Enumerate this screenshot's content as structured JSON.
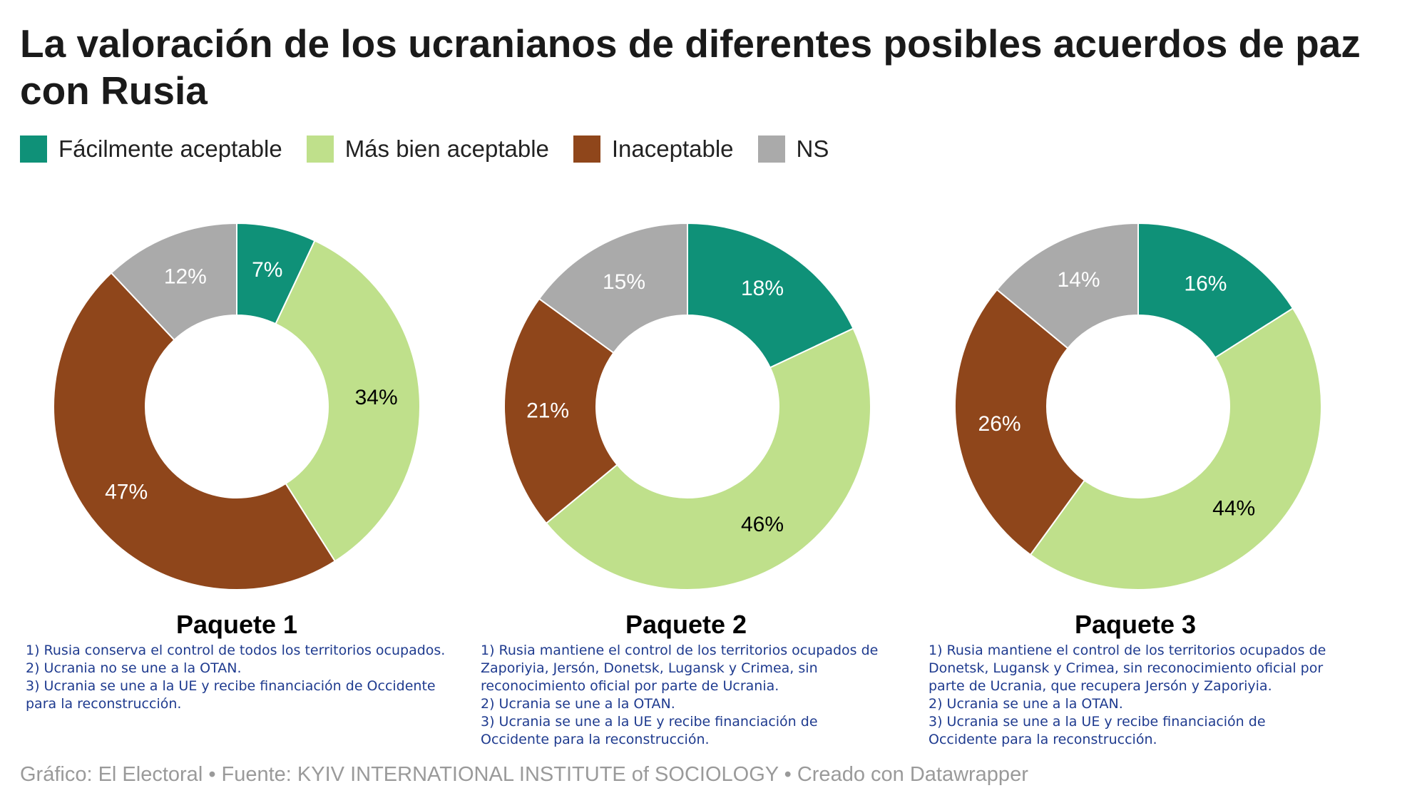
{
  "title": "La valoración de los ucranianos de diferentes posibles acuerdos de paz con Rusia",
  "legend": [
    {
      "label": "Fácilmente aceptable",
      "color": "#0f9178"
    },
    {
      "label": "Más bien aceptable",
      "color": "#bfe08b"
    },
    {
      "label": "Inaceptable",
      "color": "#8f461b"
    },
    {
      "label": "NS",
      "color": "#aaaaaa"
    }
  ],
  "panels": [
    {
      "title": "Paquete 1",
      "description": [
        "1) Rusia conserva el control de todos los territorios ocupados.",
        "2) Ucrania no se une a la OTAN.",
        "3) Ucrania se une a la UE y recibe financiación de Occidente",
        "para la reconstrucción."
      ]
    },
    {
      "title": "Paquete 2",
      "description": [
        "1) Rusia mantiene el control de los territorios ocupados de",
        "Zaporiyia, Jersón, Donetsk, Lugansk y Crimea, sin",
        "reconocimiento oficial por parte de Ucrania.",
        "2) Ucrania se une a la OTAN.",
        "3) Ucrania se une a la UE y recibe financiación de",
        "Occidente para la reconstrucción."
      ]
    },
    {
      "title": "Paquete 3",
      "description": [
        "1) Rusia mantiene el control de los territorios ocupados de",
        "Donetsk, Lugansk y Crimea, sin reconocimiento oficial por",
        "parte de Ucrania, que recupera Jersón y Zaporiyia.",
        "2) Ucrania se une a la OTAN.",
        "3) Ucrania se une a la UE y recibe financiación de",
        "Occidente para la reconstrucción."
      ]
    }
  ],
  "chart_data": [
    {
      "type": "pie",
      "title": "Paquete 1",
      "categories": [
        "Fácilmente aceptable",
        "Más bien aceptable",
        "Inaceptable",
        "NS"
      ],
      "values": [
        7,
        34,
        47,
        12
      ],
      "labels": [
        "7%",
        "34%",
        "47%",
        "12%"
      ],
      "colors": [
        "#0f9178",
        "#bfe08b",
        "#8f461b",
        "#aaaaaa"
      ],
      "label_colors": [
        "#ffffff",
        "#000000",
        "#ffffff",
        "#ffffff"
      ]
    },
    {
      "type": "pie",
      "title": "Paquete 2",
      "categories": [
        "Fácilmente aceptable",
        "Más bien aceptable",
        "Inaceptable",
        "NS"
      ],
      "values": [
        18,
        46,
        21,
        15
      ],
      "labels": [
        "18%",
        "46%",
        "21%",
        "15%"
      ],
      "colors": [
        "#0f9178",
        "#bfe08b",
        "#8f461b",
        "#aaaaaa"
      ],
      "label_colors": [
        "#ffffff",
        "#000000",
        "#ffffff",
        "#ffffff"
      ]
    },
    {
      "type": "pie",
      "title": "Paquete 3",
      "categories": [
        "Fácilmente aceptable",
        "Más bien aceptable",
        "Inaceptable",
        "NS"
      ],
      "values": [
        16,
        44,
        26,
        14
      ],
      "labels": [
        "16%",
        "44%",
        "26%",
        "14%"
      ],
      "colors": [
        "#0f9178",
        "#bfe08b",
        "#8f461b",
        "#aaaaaa"
      ],
      "label_colors": [
        "#ffffff",
        "#000000",
        "#ffffff",
        "#ffffff"
      ]
    }
  ],
  "footer": "Gráfico: El Electoral • Fuente: KYIV INTERNATIONAL INSTITUTE of SOCIOLOGY • Creado con Datawrapper"
}
